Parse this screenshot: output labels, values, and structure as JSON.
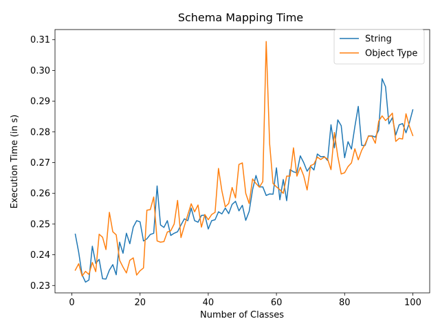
{
  "chart_data": {
    "type": "line",
    "title": "Schema Mapping Time",
    "xlabel": "Number of Classes",
    "ylabel": "Execution Time (in s)",
    "xlim": [
      -4.95,
      104.95
    ],
    "ylim": [
      0.2276,
      0.3133
    ],
    "xticks": [
      0,
      20,
      40,
      60,
      80,
      100
    ],
    "yticks": [
      0.23,
      0.24,
      0.25,
      0.26,
      0.27,
      0.28,
      0.29,
      0.3,
      0.31
    ],
    "xtick_labels": [
      "0",
      "20",
      "40",
      "60",
      "80",
      "100"
    ],
    "ytick_labels": [
      "0.23",
      "0.24",
      "0.25",
      "0.26",
      "0.27",
      "0.28",
      "0.29",
      "0.30",
      "0.31"
    ],
    "grid": false,
    "legend_position": "top-right",
    "x": [
      1,
      2,
      3,
      4,
      5,
      6,
      7,
      8,
      9,
      10,
      11,
      12,
      13,
      14,
      15,
      16,
      17,
      18,
      19,
      20,
      21,
      22,
      23,
      24,
      25,
      26,
      27,
      28,
      29,
      30,
      31,
      32,
      33,
      34,
      35,
      36,
      37,
      38,
      39,
      40,
      41,
      42,
      43,
      44,
      45,
      46,
      47,
      48,
      49,
      50,
      51,
      52,
      53,
      54,
      55,
      56,
      57,
      58,
      59,
      60,
      61,
      62,
      63,
      64,
      65,
      66,
      67,
      68,
      69,
      70,
      71,
      72,
      73,
      74,
      75,
      76,
      77,
      78,
      79,
      80,
      81,
      82,
      83,
      84,
      85,
      86,
      87,
      88,
      89,
      90,
      91,
      92,
      93,
      94,
      95,
      96,
      97,
      98,
      99,
      100
    ],
    "series": [
      {
        "name": "String",
        "color": "#1f77b4",
        "values": [
          0.2467,
          0.2408,
          0.2335,
          0.2311,
          0.2318,
          0.2428,
          0.2372,
          0.2385,
          0.2322,
          0.2321,
          0.235,
          0.2368,
          0.2335,
          0.2441,
          0.2405,
          0.247,
          0.2436,
          0.249,
          0.2511,
          0.2507,
          0.2445,
          0.2452,
          0.2466,
          0.247,
          0.2624,
          0.2497,
          0.2489,
          0.2511,
          0.2463,
          0.247,
          0.2475,
          0.2497,
          0.2517,
          0.2511,
          0.2552,
          0.2511,
          0.2506,
          0.2528,
          0.2529,
          0.2484,
          0.2511,
          0.2514,
          0.254,
          0.2533,
          0.2552,
          0.2534,
          0.2564,
          0.2574,
          0.2543,
          0.2561,
          0.2512,
          0.2541,
          0.2612,
          0.2658,
          0.2621,
          0.2621,
          0.2593,
          0.2598,
          0.2597,
          0.2683,
          0.2579,
          0.2645,
          0.2576,
          0.2677,
          0.267,
          0.2667,
          0.2722,
          0.27,
          0.2672,
          0.2688,
          0.2676,
          0.2728,
          0.2719,
          0.272,
          0.2707,
          0.2823,
          0.2748,
          0.2839,
          0.282,
          0.2716,
          0.2768,
          0.2744,
          0.2817,
          0.2883,
          0.2756,
          0.2756,
          0.2787,
          0.2787,
          0.2783,
          0.2806,
          0.2973,
          0.2947,
          0.2826,
          0.2846,
          0.279,
          0.2823,
          0.2827,
          0.2797,
          0.283,
          0.2872
        ]
      },
      {
        "name": "Object Type",
        "color": "#ff7f0e",
        "values": [
          0.235,
          0.2371,
          0.2331,
          0.2346,
          0.2336,
          0.2375,
          0.2345,
          0.2467,
          0.2457,
          0.2417,
          0.2538,
          0.2475,
          0.2465,
          0.2382,
          0.236,
          0.2341,
          0.2382,
          0.239,
          0.2334,
          0.2348,
          0.2357,
          0.2545,
          0.2547,
          0.2588,
          0.2445,
          0.2441,
          0.2443,
          0.2474,
          0.2478,
          0.25,
          0.2577,
          0.2456,
          0.2494,
          0.253,
          0.2566,
          0.254,
          0.2562,
          0.249,
          0.2531,
          0.2514,
          0.2531,
          0.2538,
          0.2681,
          0.2608,
          0.2556,
          0.2567,
          0.2619,
          0.2585,
          0.2694,
          0.2699,
          0.26,
          0.2567,
          0.2647,
          0.2632,
          0.262,
          0.2638,
          0.3094,
          0.2762,
          0.2632,
          0.2621,
          0.2612,
          0.26,
          0.2656,
          0.2656,
          0.2748,
          0.2656,
          0.2685,
          0.2657,
          0.2611,
          0.269,
          0.2695,
          0.2718,
          0.271,
          0.2718,
          0.2712,
          0.2677,
          0.2798,
          0.272,
          0.2663,
          0.2667,
          0.2687,
          0.2699,
          0.2745,
          0.2709,
          0.274,
          0.276,
          0.2786,
          0.2786,
          0.2763,
          0.2835,
          0.2852,
          0.2837,
          0.2848,
          0.2861,
          0.2769,
          0.2779,
          0.2777,
          0.2859,
          0.2818,
          0.2788
        ]
      }
    ]
  }
}
